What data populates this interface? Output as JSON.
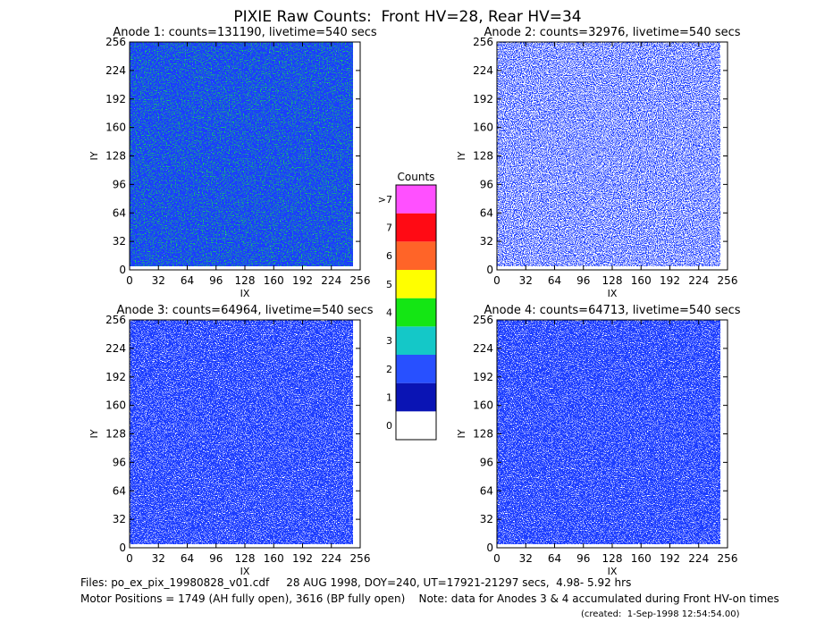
{
  "title": "PIXIE Raw Counts:  Front HV=28, Rear HV=34",
  "chart_data": [
    {
      "type": "heatmap",
      "title": "Anode 1: counts=131190, livetime=540 secs",
      "xlabel": "IX",
      "ylabel": "IY",
      "xlim": [
        0,
        256
      ],
      "ylim": [
        0,
        256
      ],
      "xticks": [
        0,
        32,
        64,
        96,
        128,
        160,
        192,
        224,
        256
      ],
      "yticks": [
        0,
        32,
        64,
        96,
        128,
        160,
        192,
        224,
        256
      ]
    },
    {
      "type": "heatmap",
      "title": "Anode 2: counts=32976, livetime=540 secs",
      "xlabel": "IX",
      "ylabel": "IY",
      "xlim": [
        0,
        256
      ],
      "ylim": [
        0,
        256
      ],
      "xticks": [
        0,
        32,
        64,
        96,
        128,
        160,
        192,
        224,
        256
      ],
      "yticks": [
        0,
        32,
        64,
        96,
        128,
        160,
        192,
        224,
        256
      ]
    },
    {
      "type": "heatmap",
      "title": "Anode 3: counts=64964, livetime=540 secs",
      "xlabel": "IX",
      "ylabel": "IY",
      "xlim": [
        0,
        256
      ],
      "ylim": [
        0,
        256
      ],
      "xticks": [
        0,
        32,
        64,
        96,
        128,
        160,
        192,
        224,
        256
      ],
      "yticks": [
        0,
        32,
        64,
        96,
        128,
        160,
        192,
        224,
        256
      ]
    },
    {
      "type": "heatmap",
      "title": "Anode 4: counts=64713, livetime=540 secs",
      "xlabel": "IX",
      "ylabel": "IY",
      "xlim": [
        0,
        256
      ],
      "ylim": [
        0,
        256
      ],
      "xticks": [
        0,
        32,
        64,
        96,
        128,
        160,
        192,
        224,
        256
      ],
      "yticks": [
        0,
        32,
        64,
        96,
        128,
        160,
        192,
        224,
        256
      ]
    }
  ],
  "colorbar": {
    "title": "Counts",
    "labels": [
      "0",
      "1",
      "2",
      "3",
      "4",
      "5",
      "6",
      "7",
      ">7"
    ],
    "colors": [
      "#ffffff",
      "#0a14b4",
      "#2850ff",
      "#14c8c8",
      "#14e614",
      "#ffff00",
      "#ff6428",
      "#ff0a14",
      "#ff50ff"
    ]
  },
  "footer": [
    "Files: po_ex_pix_19980828_v01.cdf     28 AUG 1998, DOY=240, UT=17921-21297 secs,  4.98- 5.92 hrs",
    "Motor Positions = 1749 (AH fully open), 3616 (BP fully open)    Note: data for Anodes 3 & 4 accumulated during Front HV-on times",
    "(created:  1-Sep-1998 12:54:54.00)"
  ]
}
